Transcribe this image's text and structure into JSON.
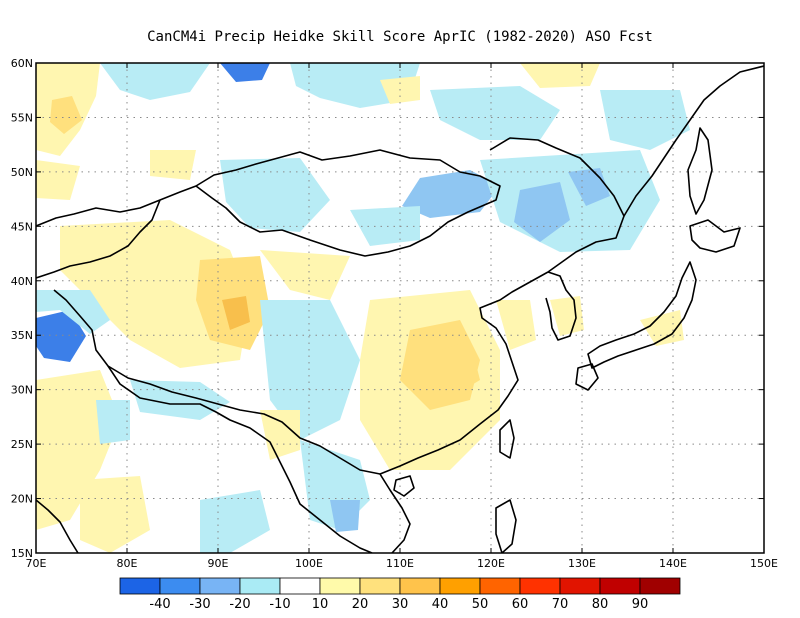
{
  "title": "CanCM4i Precip Heidke Skill Score AprIC (1982-2020) ASO Fcst",
  "map": {
    "lon_range": [
      70,
      150
    ],
    "lat_range": [
      15,
      60
    ],
    "x_ticks": [
      "70E",
      "80E",
      "90E",
      "100E",
      "110E",
      "120E",
      "130E",
      "140E",
      "150E"
    ],
    "y_ticks": [
      "15N",
      "20N",
      "25N",
      "30N",
      "35N",
      "40N",
      "45N",
      "50N",
      "55N",
      "60N"
    ],
    "gridlines": "dotted"
  },
  "colorbar": {
    "labels": [
      "-40",
      "-30",
      "-20",
      "-10",
      "10",
      "20",
      "30",
      "40",
      "50",
      "60",
      "70",
      "80",
      "90"
    ],
    "colors": [
      "#1c64e6",
      "#3c8cf0",
      "#78b4f5",
      "#aaebf5",
      "#ffffff",
      "#fffaaa",
      "#ffe17d",
      "#ffc34b",
      "#ffa000",
      "#ff6400",
      "#ff3200",
      "#e11400",
      "#c00000",
      "#a00000"
    ]
  },
  "palette": {
    "blue_dark": "#3c7fe8",
    "blue_mid": "#8fc6f2",
    "blue_light": "#b8ecf5",
    "yellow_light": "#fff6b0",
    "yellow_mid": "#ffe07d",
    "orange": "#f8bf4c"
  }
}
